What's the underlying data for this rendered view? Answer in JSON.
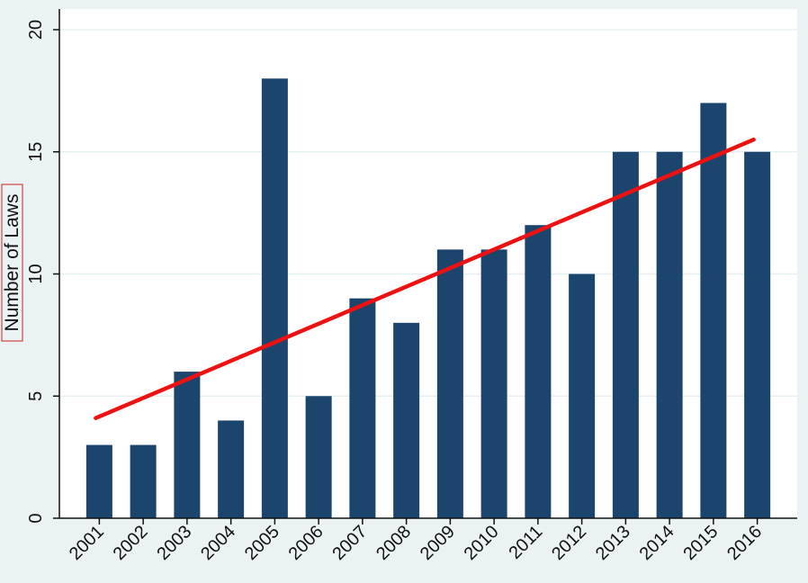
{
  "chart_data": {
    "type": "bar",
    "title": "",
    "xlabel": "",
    "ylabel": "Number of Laws",
    "categories": [
      "2001",
      "2002",
      "2003",
      "2004",
      "2005",
      "2006",
      "2007",
      "2008",
      "2009",
      "2010",
      "2011",
      "2012",
      "2013",
      "2014",
      "2015",
      "2016"
    ],
    "values": [
      3,
      3,
      6,
      4,
      18,
      5,
      9,
      8,
      11,
      11,
      12,
      10,
      15,
      15,
      17,
      15
    ],
    "trend_line": {
      "from": {
        "x": "2001",
        "y": 4.1
      },
      "to": {
        "x": "2016",
        "y": 15.5
      }
    },
    "ylim": [
      0,
      20
    ],
    "yticks": [
      0,
      5,
      10,
      15,
      20
    ],
    "grid": true,
    "legend": "none",
    "colors": {
      "bar": "#1c456e",
      "trend": "#ee1111",
      "plot_background": "#ffffff",
      "outer_background": "#eaf2f3",
      "gridline": "#e6eff0",
      "axis": "#111111",
      "ylabel_box": "#cc2222"
    }
  }
}
